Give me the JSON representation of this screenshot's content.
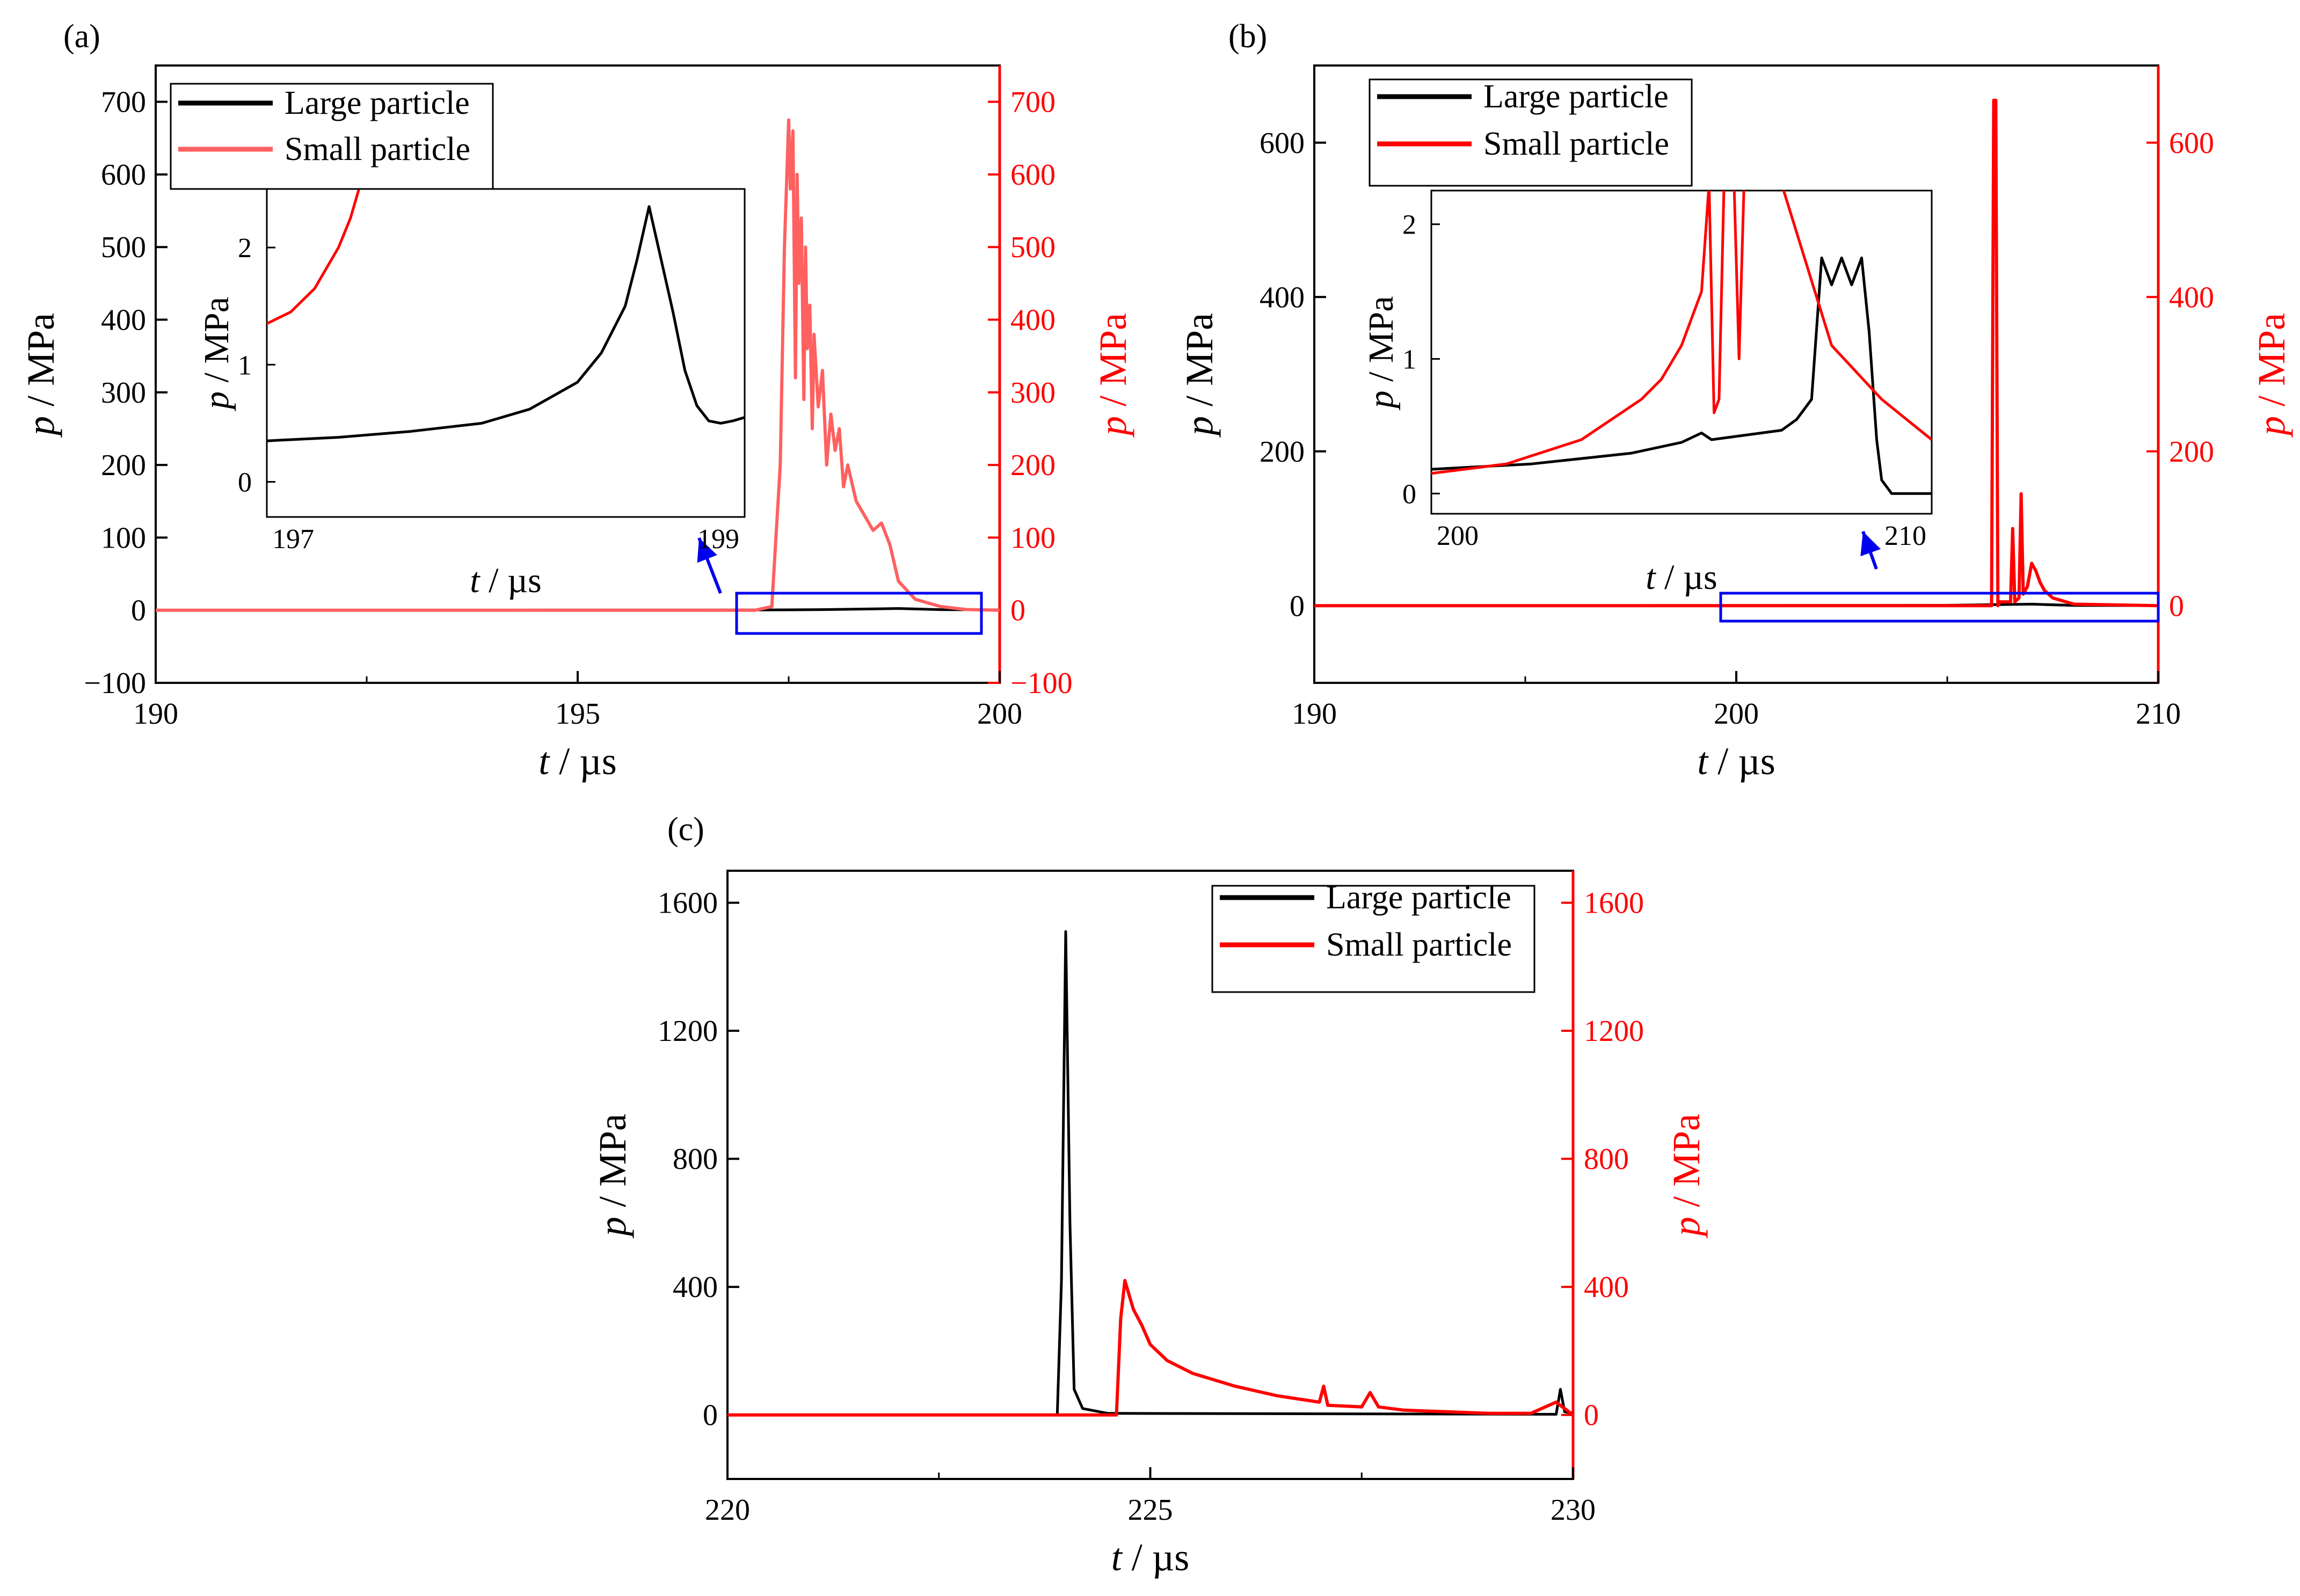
{
  "colors": {
    "large": "#000000",
    "small_a": "#ff6060",
    "small_bc": "#ff0000",
    "right_axis": "#ff0000",
    "zoom_box": "#0000ee",
    "arrow": "#0000ee"
  },
  "chart_data": [
    {
      "type": "line",
      "panel": "(a)",
      "xlabel_var": "t",
      "xlabel_unit": " / µs",
      "ylabel_var": "p",
      "ylabel_unit": " / MPa",
      "xlim": [
        190,
        200
      ],
      "ylim": [
        -100,
        750
      ],
      "xticks": [
        "190",
        "195",
        "200"
      ],
      "yticks_left": [
        "−100",
        "0",
        "100",
        "200",
        "300",
        "400",
        "500",
        "600",
        "700"
      ],
      "yticks_right": [
        "−100",
        "0",
        "100",
        "200",
        "300",
        "400",
        "500",
        "600",
        "700"
      ],
      "legend": [
        "Large particle",
        "Small particle"
      ],
      "series": [
        {
          "name": "Large particle",
          "x": [
            190,
            196.9,
            197.5,
            198,
            198.8,
            199.3,
            200
          ],
          "y": [
            0,
            0.3,
            0.5,
            1,
            2.4,
            0.8,
            0.5
          ]
        },
        {
          "name": "Small particle",
          "x": [
            190,
            197.1,
            197.3,
            197.4,
            197.45,
            197.5,
            197.52,
            197.55,
            197.58,
            197.6,
            197.62,
            197.65,
            197.68,
            197.7,
            197.72,
            197.75,
            197.78,
            197.8,
            197.85,
            197.9,
            197.95,
            198,
            198.05,
            198.1,
            198.15,
            198.2,
            198.3,
            198.4,
            198.5,
            198.6,
            198.7,
            198.8,
            199,
            199.3,
            199.6,
            200
          ],
          "y": [
            0,
            0,
            5,
            200,
            500,
            675,
            580,
            660,
            320,
            600,
            450,
            540,
            290,
            500,
            360,
            420,
            250,
            380,
            280,
            330,
            200,
            270,
            220,
            250,
            170,
            200,
            150,
            130,
            110,
            120,
            90,
            40,
            15,
            5,
            1,
            0
          ]
        }
      ],
      "inset": {
        "xlim": [
          197,
          199
        ],
        "ylim": [
          -0.3,
          2.5
        ],
        "xticks": [
          "197",
          "199"
        ],
        "yticks": [
          "0",
          "1",
          "2"
        ],
        "xlabel_var": "t",
        "xlabel_unit": " / µs",
        "ylabel_var": "p",
        "ylabel_unit": " / MPa",
        "series": [
          {
            "name": "Large particle",
            "x": [
              197,
              197.3,
              197.6,
              197.9,
              198.1,
              198.3,
              198.4,
              198.5,
              198.55,
              198.6,
              198.65,
              198.7,
              198.75,
              198.8,
              198.85,
              198.9,
              198.95,
              199
            ],
            "y": [
              0.35,
              0.38,
              0.43,
              0.5,
              0.62,
              0.85,
              1.1,
              1.5,
              1.9,
              2.35,
              1.9,
              1.45,
              0.95,
              0.65,
              0.52,
              0.5,
              0.52,
              0.55
            ]
          },
          {
            "name": "Small particle",
            "x": [
              197,
              197.1,
              197.2,
              197.3,
              197.35,
              197.4
            ],
            "y": [
              1.35,
              1.45,
              1.65,
              2.0,
              2.25,
              2.6
            ]
          }
        ]
      }
    },
    {
      "type": "line",
      "panel": "(b)",
      "xlabel_var": "t",
      "xlabel_unit": " / µs",
      "ylabel_var": "p",
      "ylabel_unit": " / MPa",
      "xlim": [
        190,
        210
      ],
      "ylim": [
        -100,
        700
      ],
      "xticks": [
        "190",
        "200",
        "210"
      ],
      "yticks_left": [
        "0",
        "200",
        "400",
        "600"
      ],
      "yticks_right": [
        "0",
        "200",
        "400",
        "600"
      ],
      "legend": [
        "Large particle",
        "Small particle"
      ],
      "series": [
        {
          "name": "Large particle",
          "x": [
            190,
            202,
            205,
            207,
            208,
            210
          ],
          "y": [
            0,
            0.3,
            0.5,
            2,
            0.3,
            0.2
          ]
        },
        {
          "name": "Small particle",
          "x": [
            190,
            206.05,
            206.1,
            206.15,
            206.2,
            206.25,
            206.5,
            206.55,
            206.6,
            206.7,
            206.75,
            206.8,
            206.9,
            207,
            207.1,
            207.2,
            207.3,
            207.5,
            208,
            210
          ],
          "y": [
            0,
            0,
            655,
            655,
            0,
            5,
            5,
            100,
            5,
            10,
            145,
            15,
            25,
            55,
            45,
            30,
            20,
            10,
            2,
            0
          ]
        }
      ],
      "inset": {
        "xlim": [
          200,
          210
        ],
        "ylim": [
          -0.15,
          2.25
        ],
        "xticks": [
          "200",
          "210"
        ],
        "yticks": [
          "0",
          "1",
          "2"
        ],
        "xlabel_var": "t",
        "xlabel_unit": " / µs",
        "ylabel_var": "p",
        "ylabel_unit": " / MPa",
        "series": [
          {
            "name": "Large particle",
            "x": [
              200,
              202,
              204,
              205,
              205.4,
              205.6,
              206,
              207,
              207.3,
              207.6,
              207.8,
              208,
              208.2,
              208.4,
              208.6,
              208.75,
              208.9,
              209,
              209.2,
              209.6,
              210
            ],
            "y": [
              0.18,
              0.22,
              0.3,
              0.38,
              0.45,
              0.4,
              0.42,
              0.47,
              0.55,
              0.7,
              1.75,
              1.55,
              1.75,
              1.55,
              1.75,
              1.2,
              0.4,
              0.1,
              0.0,
              0.0,
              0.0
            ]
          },
          {
            "name": "Small particle",
            "x": [
              200,
              201.5,
              203,
              204.2,
              204.6,
              205,
              205.4,
              205.55,
              205.65,
              205.75,
              205.85,
              206.05,
              206.15,
              206.25,
              206.35,
              206.5,
              207,
              208,
              209,
              210
            ],
            "y": [
              0.15,
              0.22,
              0.4,
              0.7,
              0.85,
              1.1,
              1.5,
              2.3,
              0.6,
              0.7,
              2.3,
              2.3,
              1.0,
              2.3,
              2.3,
              2.3,
              2.3,
              1.1,
              0.7,
              0.4
            ]
          }
        ]
      }
    },
    {
      "type": "line",
      "panel": "(c)",
      "xlabel_var": "t",
      "xlabel_unit": " / µs",
      "ylabel_var": "p",
      "ylabel_unit": " / MPa",
      "xlim": [
        220,
        230
      ],
      "ylim": [
        -200,
        1700
      ],
      "xticks": [
        "220",
        "225",
        "230"
      ],
      "yticks_left": [
        "0",
        "400",
        "800",
        "1200",
        "1600"
      ],
      "yticks_right": [
        "0",
        "400",
        "800",
        "1200",
        "1600"
      ],
      "legend": [
        "Large particle",
        "Small particle"
      ],
      "series": [
        {
          "name": "Large particle",
          "x": [
            220,
            223.9,
            223.95,
            224,
            224.05,
            224.1,
            224.2,
            224.5,
            229.8,
            229.85,
            229.9,
            230
          ],
          "y": [
            0,
            0,
            420,
            1510,
            600,
            80,
            20,
            5,
            2,
            80,
            10,
            5
          ]
        },
        {
          "name": "Small particle",
          "x": [
            220,
            224.6,
            224.65,
            224.7,
            224.8,
            224.9,
            225,
            225.2,
            225.5,
            226,
            226.5,
            227,
            227.05,
            227.1,
            227.5,
            227.6,
            227.7,
            228,
            228.5,
            229,
            229.5,
            229.8,
            229.9,
            230
          ],
          "y": [
            0,
            0,
            300,
            420,
            330,
            280,
            220,
            170,
            130,
            90,
            60,
            40,
            90,
            30,
            25,
            70,
            25,
            15,
            10,
            5,
            5,
            40,
            20,
            0
          ]
        }
      ]
    }
  ]
}
